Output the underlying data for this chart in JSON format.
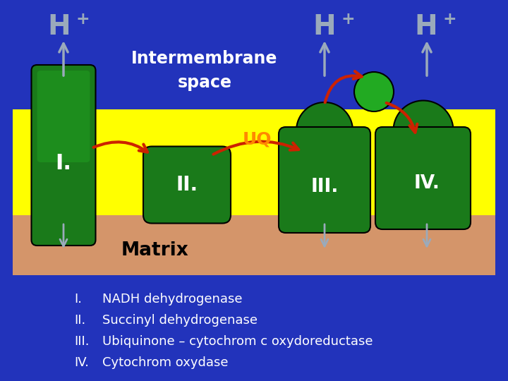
{
  "bg_color": "#2233bb",
  "membrane_yellow": "#ffff00",
  "membrane_brown": "#d4956a",
  "green_dark": "#1a7a1a",
  "green_mid": "#22aa22",
  "green_bright": "#33dd33",
  "red_arrow": "#cc2200",
  "uq_color": "#ff8800",
  "white": "#ffffff",
  "light_blue": "#aabbdd",
  "h_color": "#9aaabb",
  "title": "Intermembrane\nspace",
  "matrix_label": "Matrix",
  "uq_label": "UQ",
  "legend_lines": [
    [
      "I.",
      "NADH dehydrogenase"
    ],
    [
      "II.",
      "Succinyl dehydrogenase"
    ],
    [
      "III.",
      "Ubiquinone – cytochrom c oxydoreductase"
    ],
    [
      "IV.",
      "Cytochrom oxydase"
    ]
  ]
}
